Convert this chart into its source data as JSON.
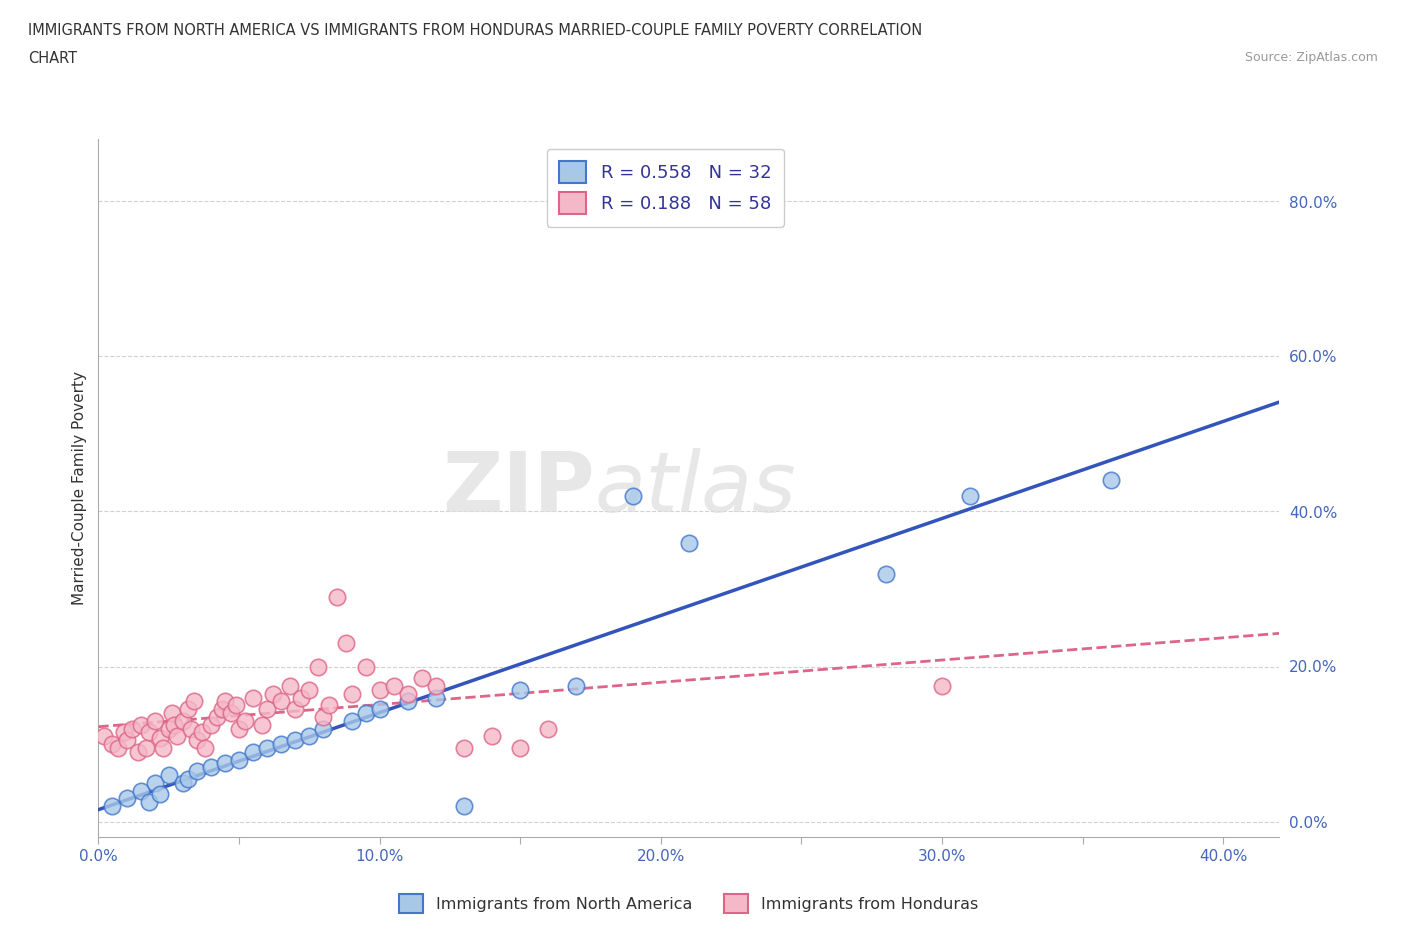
{
  "title_line1": "IMMIGRANTS FROM NORTH AMERICA VS IMMIGRANTS FROM HONDURAS MARRIED-COUPLE FAMILY POVERTY CORRELATION",
  "title_line2": "CHART",
  "source": "Source: ZipAtlas.com",
  "ylabel": "Married-Couple Family Poverty",
  "xlim": [
    0.0,
    0.42
  ],
  "ylim": [
    -0.02,
    0.88
  ],
  "xtick_labels": [
    "0.0%",
    "",
    "10.0%",
    "",
    "20.0%",
    "",
    "30.0%",
    "",
    "40.0%"
  ],
  "xtick_values": [
    0.0,
    0.05,
    0.1,
    0.15,
    0.2,
    0.25,
    0.3,
    0.35,
    0.4
  ],
  "ytick_labels": [
    "0.0%",
    "20.0%",
    "40.0%",
    "60.0%",
    "80.0%"
  ],
  "ytick_values": [
    0.0,
    0.2,
    0.4,
    0.6,
    0.8
  ],
  "R_blue": 0.558,
  "N_blue": 32,
  "R_pink": 0.188,
  "N_pink": 58,
  "color_blue_fill": "#a8c8e8",
  "color_blue_edge": "#4477cc",
  "color_blue_line": "#3355bb",
  "color_pink_fill": "#f4b8c8",
  "color_pink_edge": "#dd6688",
  "color_pink_line": "#dd6688",
  "watermark_zip": "ZIP",
  "watermark_atlas": "atlas",
  "legend_label_blue": "Immigrants from North America",
  "legend_label_pink": "Immigrants from Honduras",
  "blue_x": [
    0.005,
    0.01,
    0.015,
    0.018,
    0.02,
    0.022,
    0.025,
    0.03,
    0.032,
    0.035,
    0.04,
    0.045,
    0.05,
    0.055,
    0.06,
    0.065,
    0.07,
    0.075,
    0.08,
    0.09,
    0.095,
    0.1,
    0.11,
    0.12,
    0.13,
    0.15,
    0.17,
    0.19,
    0.21,
    0.28,
    0.31,
    0.36
  ],
  "blue_y": [
    0.02,
    0.03,
    0.04,
    0.025,
    0.05,
    0.035,
    0.06,
    0.05,
    0.055,
    0.065,
    0.07,
    0.075,
    0.08,
    0.09,
    0.095,
    0.1,
    0.105,
    0.11,
    0.12,
    0.13,
    0.14,
    0.145,
    0.155,
    0.16,
    0.02,
    0.17,
    0.175,
    0.42,
    0.36,
    0.32,
    0.42,
    0.44
  ],
  "pink_x": [
    0.002,
    0.005,
    0.007,
    0.009,
    0.01,
    0.012,
    0.014,
    0.015,
    0.017,
    0.018,
    0.02,
    0.022,
    0.023,
    0.025,
    0.026,
    0.027,
    0.028,
    0.03,
    0.032,
    0.033,
    0.034,
    0.035,
    0.037,
    0.038,
    0.04,
    0.042,
    0.044,
    0.045,
    0.047,
    0.049,
    0.05,
    0.052,
    0.055,
    0.058,
    0.06,
    0.062,
    0.065,
    0.068,
    0.07,
    0.072,
    0.075,
    0.078,
    0.08,
    0.082,
    0.085,
    0.088,
    0.09,
    0.095,
    0.1,
    0.105,
    0.11,
    0.115,
    0.12,
    0.13,
    0.14,
    0.15,
    0.16,
    0.3
  ],
  "pink_y": [
    0.11,
    0.1,
    0.095,
    0.115,
    0.105,
    0.12,
    0.09,
    0.125,
    0.095,
    0.115,
    0.13,
    0.108,
    0.095,
    0.12,
    0.14,
    0.125,
    0.11,
    0.13,
    0.145,
    0.12,
    0.155,
    0.105,
    0.115,
    0.095,
    0.125,
    0.135,
    0.145,
    0.155,
    0.14,
    0.15,
    0.12,
    0.13,
    0.16,
    0.125,
    0.145,
    0.165,
    0.155,
    0.175,
    0.145,
    0.16,
    0.17,
    0.2,
    0.135,
    0.15,
    0.29,
    0.23,
    0.165,
    0.2,
    0.17,
    0.175,
    0.165,
    0.185,
    0.175,
    0.095,
    0.11,
    0.095,
    0.12,
    0.175
  ],
  "background_color": "#ffffff",
  "grid_color": "#cccccc"
}
